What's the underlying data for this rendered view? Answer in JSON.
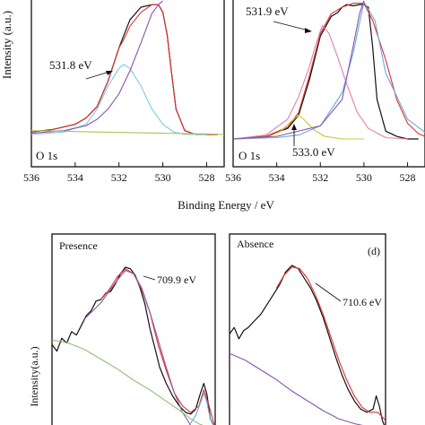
{
  "chart_data": [
    {
      "type": "line",
      "panel_label": "O 1s",
      "ylabel": "Intensity (a.u.)",
      "x_ticks": [
        "536",
        "534",
        "532",
        "530",
        "528"
      ],
      "xlim": [
        536,
        527.2
      ],
      "annotations": [
        {
          "text": "531.8 eV",
          "x": 531.8
        }
      ],
      "series": [
        {
          "color": "#111111",
          "x": [
            536,
            535,
            534,
            533.5,
            533,
            532.5,
            532,
            531.8,
            531.5,
            531,
            530.5,
            530.2,
            530,
            529.8,
            529.6,
            529.4,
            529,
            528.5,
            528,
            527.5
          ],
          "y": [
            0.02,
            0.04,
            0.08,
            0.13,
            0.22,
            0.42,
            0.68,
            0.77,
            0.9,
            1.0,
            1.02,
            1.02,
            0.96,
            0.78,
            0.48,
            0.2,
            0.03,
            0.0,
            0.0,
            0.0
          ]
        },
        {
          "color": "#e03030",
          "x": [
            536,
            535,
            534,
            533.5,
            533,
            532.5,
            532,
            531.8,
            531.5,
            531,
            530.5,
            530.2,
            530,
            529.8,
            529.6,
            529.4,
            529,
            528.5,
            528,
            527.5
          ],
          "y": [
            0.02,
            0.04,
            0.08,
            0.13,
            0.22,
            0.42,
            0.68,
            0.74,
            0.85,
            0.96,
            1.02,
            1.02,
            0.96,
            0.78,
            0.48,
            0.2,
            0.03,
            0.0,
            0.0,
            0.0
          ]
        },
        {
          "color": "#7fc8e0",
          "x": [
            536,
            534.5,
            533.5,
            533,
            532.5,
            532,
            531.8,
            531.5,
            531,
            530.5,
            530,
            529.5,
            529,
            528
          ],
          "y": [
            0.0,
            0.02,
            0.08,
            0.2,
            0.38,
            0.52,
            0.55,
            0.52,
            0.38,
            0.2,
            0.08,
            0.02,
            0.0,
            0.0
          ]
        },
        {
          "color": "#8855aa",
          "x": [
            536,
            534.5,
            533.5,
            533,
            532.5,
            532,
            531.5,
            531,
            530.5,
            530.2,
            530
          ],
          "y": [
            0.01,
            0.03,
            0.07,
            0.12,
            0.2,
            0.32,
            0.5,
            0.72,
            0.95,
            1.02,
            1.05
          ]
        },
        {
          "color": "#a4c852",
          "x": [
            536,
            533,
            530,
            528,
            527.2
          ],
          "y": [
            0.03,
            0.02,
            0.01,
            0.005,
            0.0
          ]
        }
      ]
    },
    {
      "type": "line",
      "panel_label": "O 1s",
      "x_ticks": [
        "536",
        "534",
        "532",
        "530",
        "528"
      ],
      "xlim": [
        536,
        527.2
      ],
      "annotations": [
        {
          "text": "531.9 eV",
          "x": 531.9
        },
        {
          "text": "533.0 eV",
          "x": 533.0
        }
      ],
      "series": [
        {
          "color": "#111111",
          "x": [
            536,
            534.5,
            533.5,
            533,
            532.5,
            532,
            531.5,
            531.2,
            531,
            530.8,
            530.5,
            530.2,
            530,
            529.8,
            529.6,
            529.4,
            529,
            528.5,
            528,
            527.5
          ],
          "y": [
            0.0,
            0.02,
            0.08,
            0.18,
            0.45,
            0.78,
            0.93,
            0.96,
            1.0,
            1.02,
            1.01,
            1.02,
            1.02,
            1.0,
            0.7,
            0.3,
            0.06,
            0.02,
            0.0,
            0.0
          ]
        },
        {
          "color": "#e03030",
          "x": [
            536,
            534.5,
            533.5,
            533,
            532.5,
            532,
            531.5,
            531,
            530.5,
            530,
            529.6,
            529,
            528.5,
            528,
            527.5,
            527.2
          ],
          "y": [
            0.0,
            0.02,
            0.09,
            0.2,
            0.48,
            0.8,
            0.95,
            1.0,
            1.03,
            1.03,
            0.9,
            0.6,
            0.3,
            0.12,
            0.04,
            0.02
          ]
        },
        {
          "color": "#e080a8",
          "x": [
            536,
            534.5,
            533.5,
            533,
            532.5,
            532.2,
            532,
            531.9,
            531.6,
            531.2,
            530.8,
            530.3,
            529.8,
            529,
            528
          ],
          "y": [
            0.0,
            0.03,
            0.15,
            0.32,
            0.55,
            0.72,
            0.82,
            0.86,
            0.8,
            0.62,
            0.42,
            0.2,
            0.08,
            0.01,
            0.0
          ]
        },
        {
          "color": "#c8c830",
          "x": [
            536,
            534.5,
            533.8,
            533.3,
            533,
            532.7,
            532.3,
            531.8,
            531,
            530
          ],
          "y": [
            0.0,
            0.01,
            0.06,
            0.14,
            0.18,
            0.14,
            0.07,
            0.02,
            0.0,
            0.0
          ]
        },
        {
          "color": "#66aadd",
          "x": [
            536,
            534,
            533,
            532,
            531,
            530.5,
            530,
            529.5,
            529,
            528,
            527.2
          ],
          "y": [
            0.0,
            0.01,
            0.03,
            0.1,
            0.35,
            0.65,
            1.04,
            0.9,
            0.5,
            0.15,
            0.05
          ]
        },
        {
          "color": "#8855aa",
          "x": [
            536,
            534,
            532,
            531,
            530.5,
            530.2,
            530
          ],
          "y": [
            0.0,
            0.02,
            0.1,
            0.3,
            0.7,
            0.95,
            1.05
          ]
        }
      ]
    },
    {
      "type": "line",
      "panel_label": "Presence",
      "ylabel": "Intensity(a.u.)",
      "annotations": [
        {
          "text": "709.9 eV",
          "x": 0.44
        }
      ],
      "series": [
        {
          "color": "#111111",
          "x": [
            0,
            0.03,
            0.06,
            0.09,
            0.12,
            0.15,
            0.18,
            0.21,
            0.24,
            0.27,
            0.3,
            0.33,
            0.36,
            0.39,
            0.42,
            0.45,
            0.48,
            0.51,
            0.54,
            0.57,
            0.6,
            0.63,
            0.66,
            0.7,
            0.74,
            0.78,
            0.82,
            0.85,
            0.88,
            0.91,
            0.93,
            0.95,
            0.97,
            1.0
          ],
          "y": [
            0.52,
            0.48,
            0.56,
            0.53,
            0.6,
            0.58,
            0.64,
            0.7,
            0.73,
            0.79,
            0.8,
            0.84,
            0.85,
            0.9,
            0.96,
            1.0,
            0.99,
            0.95,
            0.87,
            0.77,
            0.62,
            0.5,
            0.38,
            0.28,
            0.2,
            0.14,
            0.1,
            0.09,
            0.12,
            0.22,
            0.28,
            0.21,
            0.06,
            0.0
          ]
        },
        {
          "color": "#e03030",
          "x": [
            0.3,
            0.35,
            0.4,
            0.45,
            0.5,
            0.55,
            0.6,
            0.65,
            0.7,
            0.75,
            0.8,
            0.85,
            0.9,
            0.93,
            0.96,
            1.0
          ],
          "y": [
            0.8,
            0.86,
            0.94,
            0.99,
            0.96,
            0.87,
            0.72,
            0.52,
            0.36,
            0.22,
            0.14,
            0.1,
            0.14,
            0.24,
            0.15,
            0.0
          ]
        },
        {
          "color": "#8855aa",
          "x": [
            0.2,
            0.3,
            0.4,
            0.45,
            0.5,
            0.55,
            0.6,
            0.65,
            0.7,
            0.75,
            0.8,
            0.85
          ],
          "y": [
            0.68,
            0.78,
            0.92,
            0.98,
            0.96,
            0.86,
            0.72,
            0.55,
            0.38,
            0.22,
            0.1,
            0.02
          ]
        },
        {
          "color": "#8fc070",
          "x": [
            0,
            0.1,
            0.2,
            0.3,
            0.4,
            0.5,
            0.6,
            0.7,
            0.8,
            0.85,
            0.9,
            0.95,
            1.0
          ],
          "y": [
            0.55,
            0.53,
            0.49,
            0.43,
            0.37,
            0.3,
            0.24,
            0.17,
            0.1,
            0.06,
            0.03,
            0.01,
            0.0
          ]
        },
        {
          "color": "#66aadd",
          "x": [
            0.78,
            0.84,
            0.88,
            0.91,
            0.93,
            0.95,
            0.97,
            1.0
          ],
          "y": [
            0.0,
            0.02,
            0.08,
            0.16,
            0.22,
            0.16,
            0.06,
            0.0
          ]
        }
      ]
    },
    {
      "type": "line",
      "panel_label": "Absence",
      "panel_tag": "(d)",
      "annotations": [
        {
          "text": "710.6 eV",
          "x": 0.48
        }
      ],
      "series": [
        {
          "color": "#111111",
          "x": [
            0,
            0.03,
            0.06,
            0.09,
            0.12,
            0.16,
            0.2,
            0.24,
            0.28,
            0.32,
            0.36,
            0.4,
            0.44,
            0.48,
            0.52,
            0.56,
            0.6,
            0.64,
            0.68,
            0.72,
            0.76,
            0.8,
            0.84,
            0.88,
            0.92,
            0.94,
            0.96,
            0.98,
            1.0
          ],
          "y": [
            0.58,
            0.62,
            0.55,
            0.6,
            0.62,
            0.66,
            0.7,
            0.76,
            0.82,
            0.88,
            0.96,
            1.0,
            0.98,
            0.92,
            0.86,
            0.78,
            0.68,
            0.56,
            0.44,
            0.33,
            0.24,
            0.17,
            0.12,
            0.1,
            0.12,
            0.2,
            0.14,
            0.05,
            0.0
          ]
        },
        {
          "color": "#e03030",
          "x": [
            0.3,
            0.35,
            0.4,
            0.45,
            0.5,
            0.55,
            0.6,
            0.65,
            0.7,
            0.75,
            0.8,
            0.85,
            0.9,
            0.95,
            1.0
          ],
          "y": [
            0.86,
            0.94,
            0.99,
            0.98,
            0.92,
            0.82,
            0.7,
            0.56,
            0.42,
            0.3,
            0.2,
            0.13,
            0.1,
            0.1,
            0.05
          ]
        },
        {
          "color": "#8855aa",
          "x": [
            0,
            0.1,
            0.2,
            0.3,
            0.4,
            0.5,
            0.6,
            0.7,
            0.8,
            0.9,
            1.0
          ],
          "y": [
            0.46,
            0.42,
            0.36,
            0.3,
            0.23,
            0.17,
            0.11,
            0.06,
            0.03,
            0.01,
            0.0
          ]
        }
      ]
    }
  ],
  "figure": {
    "xlabel": "Binding Energy / eV"
  }
}
